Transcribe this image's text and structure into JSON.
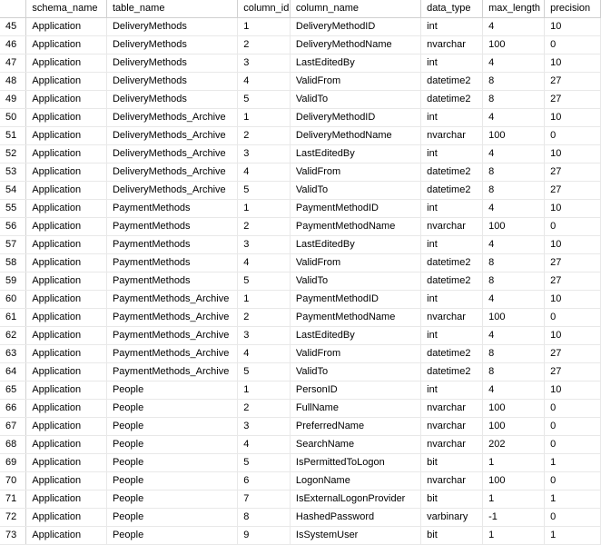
{
  "headers": {
    "rownum": "",
    "schema_name": "schema_name",
    "table_name": "table_name",
    "column_id": "column_id",
    "column_name": "column_name",
    "data_type": "data_type",
    "max_length": "max_length",
    "precision": "precision"
  },
  "rows": [
    {
      "n": "45",
      "schema": "Application",
      "table": "DeliveryMethods",
      "cid": "1",
      "col": "DeliveryMethodID",
      "dtype": "int",
      "mlen": "4",
      "prec": "10"
    },
    {
      "n": "46",
      "schema": "Application",
      "table": "DeliveryMethods",
      "cid": "2",
      "col": "DeliveryMethodName",
      "dtype": "nvarchar",
      "mlen": "100",
      "prec": "0"
    },
    {
      "n": "47",
      "schema": "Application",
      "table": "DeliveryMethods",
      "cid": "3",
      "col": "LastEditedBy",
      "dtype": "int",
      "mlen": "4",
      "prec": "10"
    },
    {
      "n": "48",
      "schema": "Application",
      "table": "DeliveryMethods",
      "cid": "4",
      "col": "ValidFrom",
      "dtype": "datetime2",
      "mlen": "8",
      "prec": "27"
    },
    {
      "n": "49",
      "schema": "Application",
      "table": "DeliveryMethods",
      "cid": "5",
      "col": "ValidTo",
      "dtype": "datetime2",
      "mlen": "8",
      "prec": "27"
    },
    {
      "n": "50",
      "schema": "Application",
      "table": "DeliveryMethods_Archive",
      "cid": "1",
      "col": "DeliveryMethodID",
      "dtype": "int",
      "mlen": "4",
      "prec": "10"
    },
    {
      "n": "51",
      "schema": "Application",
      "table": "DeliveryMethods_Archive",
      "cid": "2",
      "col": "DeliveryMethodName",
      "dtype": "nvarchar",
      "mlen": "100",
      "prec": "0"
    },
    {
      "n": "52",
      "schema": "Application",
      "table": "DeliveryMethods_Archive",
      "cid": "3",
      "col": "LastEditedBy",
      "dtype": "int",
      "mlen": "4",
      "prec": "10"
    },
    {
      "n": "53",
      "schema": "Application",
      "table": "DeliveryMethods_Archive",
      "cid": "4",
      "col": "ValidFrom",
      "dtype": "datetime2",
      "mlen": "8",
      "prec": "27"
    },
    {
      "n": "54",
      "schema": "Application",
      "table": "DeliveryMethods_Archive",
      "cid": "5",
      "col": "ValidTo",
      "dtype": "datetime2",
      "mlen": "8",
      "prec": "27"
    },
    {
      "n": "55",
      "schema": "Application",
      "table": "PaymentMethods",
      "cid": "1",
      "col": "PaymentMethodID",
      "dtype": "int",
      "mlen": "4",
      "prec": "10"
    },
    {
      "n": "56",
      "schema": "Application",
      "table": "PaymentMethods",
      "cid": "2",
      "col": "PaymentMethodName",
      "dtype": "nvarchar",
      "mlen": "100",
      "prec": "0"
    },
    {
      "n": "57",
      "schema": "Application",
      "table": "PaymentMethods",
      "cid": "3",
      "col": "LastEditedBy",
      "dtype": "int",
      "mlen": "4",
      "prec": "10"
    },
    {
      "n": "58",
      "schema": "Application",
      "table": "PaymentMethods",
      "cid": "4",
      "col": "ValidFrom",
      "dtype": "datetime2",
      "mlen": "8",
      "prec": "27"
    },
    {
      "n": "59",
      "schema": "Application",
      "table": "PaymentMethods",
      "cid": "5",
      "col": "ValidTo",
      "dtype": "datetime2",
      "mlen": "8",
      "prec": "27"
    },
    {
      "n": "60",
      "schema": "Application",
      "table": "PaymentMethods_Archive",
      "cid": "1",
      "col": "PaymentMethodID",
      "dtype": "int",
      "mlen": "4",
      "prec": "10"
    },
    {
      "n": "61",
      "schema": "Application",
      "table": "PaymentMethods_Archive",
      "cid": "2",
      "col": "PaymentMethodName",
      "dtype": "nvarchar",
      "mlen": "100",
      "prec": "0"
    },
    {
      "n": "62",
      "schema": "Application",
      "table": "PaymentMethods_Archive",
      "cid": "3",
      "col": "LastEditedBy",
      "dtype": "int",
      "mlen": "4",
      "prec": "10"
    },
    {
      "n": "63",
      "schema": "Application",
      "table": "PaymentMethods_Archive",
      "cid": "4",
      "col": "ValidFrom",
      "dtype": "datetime2",
      "mlen": "8",
      "prec": "27"
    },
    {
      "n": "64",
      "schema": "Application",
      "table": "PaymentMethods_Archive",
      "cid": "5",
      "col": "ValidTo",
      "dtype": "datetime2",
      "mlen": "8",
      "prec": "27"
    },
    {
      "n": "65",
      "schema": "Application",
      "table": "People",
      "cid": "1",
      "col": "PersonID",
      "dtype": "int",
      "mlen": "4",
      "prec": "10"
    },
    {
      "n": "66",
      "schema": "Application",
      "table": "People",
      "cid": "2",
      "col": "FullName",
      "dtype": "nvarchar",
      "mlen": "100",
      "prec": "0"
    },
    {
      "n": "67",
      "schema": "Application",
      "table": "People",
      "cid": "3",
      "col": "PreferredName",
      "dtype": "nvarchar",
      "mlen": "100",
      "prec": "0"
    },
    {
      "n": "68",
      "schema": "Application",
      "table": "People",
      "cid": "4",
      "col": "SearchName",
      "dtype": "nvarchar",
      "mlen": "202",
      "prec": "0"
    },
    {
      "n": "69",
      "schema": "Application",
      "table": "People",
      "cid": "5",
      "col": "IsPermittedToLogon",
      "dtype": "bit",
      "mlen": "1",
      "prec": "1"
    },
    {
      "n": "70",
      "schema": "Application",
      "table": "People",
      "cid": "6",
      "col": "LogonName",
      "dtype": "nvarchar",
      "mlen": "100",
      "prec": "0"
    },
    {
      "n": "71",
      "schema": "Application",
      "table": "People",
      "cid": "7",
      "col": "IsExternalLogonProvider",
      "dtype": "bit",
      "mlen": "1",
      "prec": "1"
    },
    {
      "n": "72",
      "schema": "Application",
      "table": "People",
      "cid": "8",
      "col": "HashedPassword",
      "dtype": "varbinary",
      "mlen": "-1",
      "prec": "0"
    },
    {
      "n": "73",
      "schema": "Application",
      "table": "People",
      "cid": "9",
      "col": "IsSystemUser",
      "dtype": "bit",
      "mlen": "1",
      "prec": "1"
    }
  ]
}
